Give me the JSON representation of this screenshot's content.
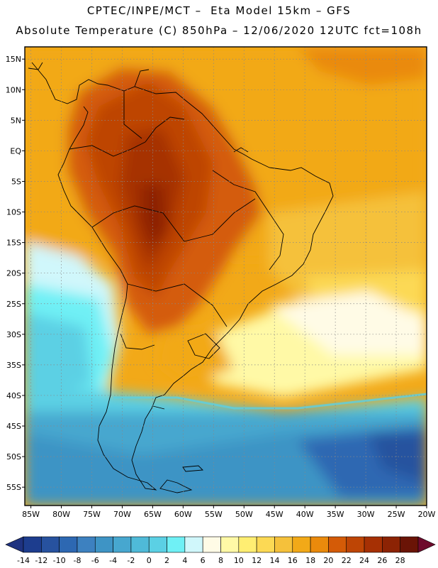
{
  "header": {
    "line1": "CPTEC/INPE/MCT –  Eta Model 15km – GFS",
    "line2": "Absolute Temperature (C) 850hPa – 12/06/2020 12UTC fct=108h"
  },
  "map": {
    "lat_labels": [
      "15N",
      "10N",
      "5N",
      "EQ",
      "5S",
      "10S",
      "15S",
      "20S",
      "25S",
      "30S",
      "35S",
      "40S",
      "45S",
      "50S",
      "55S"
    ],
    "lat_values": [
      15,
      10,
      5,
      0,
      -5,
      -10,
      -15,
      -20,
      -25,
      -30,
      -35,
      -40,
      -45,
      -50,
      -55
    ],
    "lon_labels": [
      "85W",
      "80W",
      "75W",
      "70W",
      "65W",
      "60W",
      "55W",
      "50W",
      "45W",
      "40W",
      "35W",
      "30W",
      "25W",
      "20W"
    ],
    "lon_values": [
      -85,
      -80,
      -75,
      -70,
      -65,
      -60,
      -55,
      -50,
      -45,
      -40,
      -35,
      -30,
      -25,
      -20
    ],
    "lat_range": [
      -58,
      17
    ],
    "lon_range": [
      -86,
      -20
    ],
    "grid": "dotted"
  },
  "colorbar": {
    "labels": [
      "-14",
      "-12",
      "-10",
      "-8",
      "-6",
      "-4",
      "-2",
      "0",
      "2",
      "4",
      "6",
      "8",
      "10",
      "12",
      "14",
      "16",
      "18",
      "20",
      "22",
      "24",
      "26",
      "28"
    ],
    "colors": [
      "#1d3d8e",
      "#27529f",
      "#2d68b2",
      "#3d81c0",
      "#3e94c5",
      "#47a7cf",
      "#4fbad8",
      "#5bd0e4",
      "#6ff0f5",
      "#d0f7fb",
      "#fffbe6",
      "#fff9a6",
      "#ffee72",
      "#fcd954",
      "#f5c13b",
      "#f2a918",
      "#ea8a0c",
      "#d45b07",
      "#be4505",
      "#a63004",
      "#8c2304",
      "#6a1406"
    ],
    "under_color": "#1e3280",
    "over_color": "#6e0a2c"
  }
}
